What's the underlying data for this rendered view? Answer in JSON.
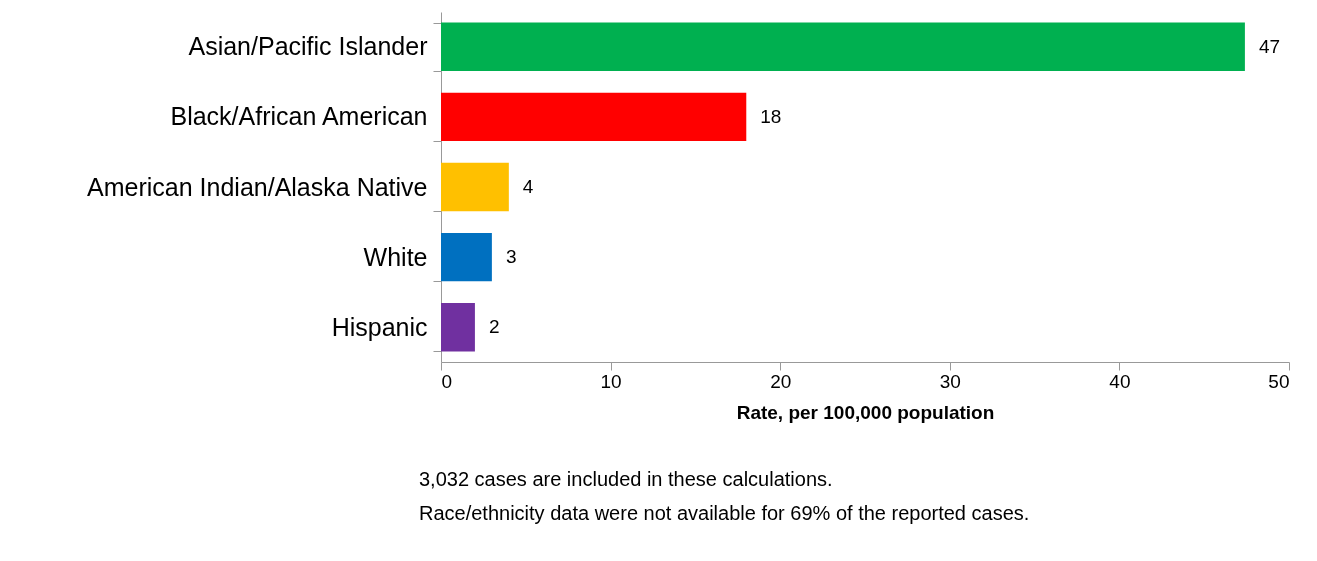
{
  "chart_data": {
    "type": "bar",
    "orientation": "horizontal",
    "categories": [
      "Asian/Pacific Islander",
      "Black/African American",
      "American Indian/Alaska Native",
      "White",
      "Hispanic"
    ],
    "values": [
      47.4,
      18,
      4,
      3,
      2
    ],
    "value_labels": [
      "47",
      "18",
      "4",
      "3",
      "2"
    ],
    "colors": [
      "#00b050",
      "#ff0000",
      "#ffc000",
      "#0070c0",
      "#7030a0"
    ],
    "xlim": [
      0,
      50
    ],
    "xticks": [
      0,
      10,
      20,
      30,
      40,
      50
    ],
    "xlabel": "Rate, per 100,000 population",
    "grid": false,
    "annotations": [
      "3,032 cases are included in these calculations.",
      "Race/ethnicity data were not available for 69% of the reported cases."
    ]
  }
}
